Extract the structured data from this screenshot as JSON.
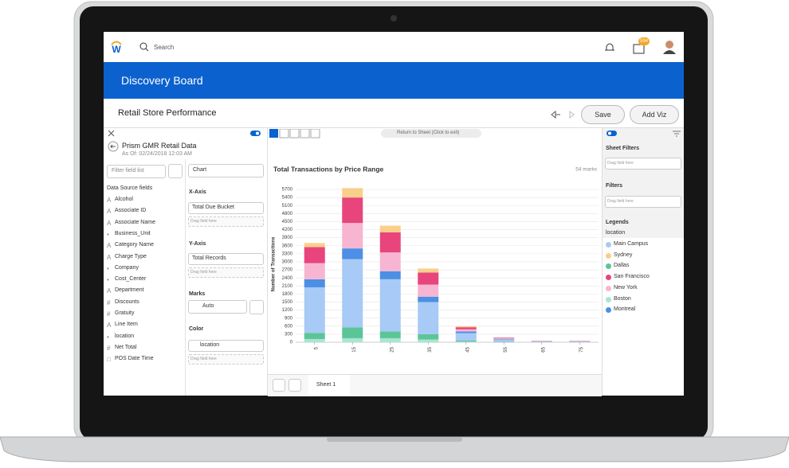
{
  "header": {
    "search": "Search",
    "notification_count": 594
  },
  "banner": {
    "title": "Discovery Board"
  },
  "board": {
    "title": "Retail Store Performance",
    "buttons": [
      "Save",
      "Add Viz"
    ]
  },
  "toolbar": {
    "return_button": "Return to Sheet (Click to exit)"
  },
  "dataset": {
    "name": "Prism GMR Retail Data",
    "as_of": "As Of: 02/24/2018 12:03 AM",
    "filter_placeholder": "Filter field list",
    "section": "Data Source fields",
    "fields": [
      "Alcohol",
      "Associate ID",
      "Associate Name",
      "Business_Unit",
      "Category Name",
      "Charge Type",
      "Company",
      "Cost_Center",
      "Department",
      "Discounts",
      "Gratuity",
      "Line Item",
      "location",
      "Net Total",
      "POS Date Time"
    ]
  },
  "config": {
    "chart_kind": "Chart",
    "x_axis": {
      "label": "X-Axis",
      "field": "Total Due Bucket",
      "drop": "Drag field here"
    },
    "y_axis": {
      "label": "Y-Axis",
      "field": "Total Records",
      "drop": "Drag field here"
    },
    "marks": {
      "label": "Marks",
      "value": "Auto"
    },
    "color": {
      "label": "Color",
      "field": "location",
      "drop": "Drag field here"
    }
  },
  "right_panel": {
    "sheet_filters": "Sheet Filters",
    "sheet_filters_drop": "Drag field here",
    "filters": "Filters",
    "filters_drop": "Drag field here",
    "legends": "Legends",
    "legend_title": "location"
  },
  "sheets": [
    "Sheet 1"
  ],
  "chart_data": {
    "type": "bar",
    "stacked": true,
    "title": "Total Transactions by Price Range",
    "marks_count": "54 marks",
    "ylabel": "Number of Transactions",
    "categories": [
      "5",
      "15",
      "25",
      "35",
      "45",
      "55",
      "65",
      "75"
    ],
    "ylim": [
      0,
      5900
    ],
    "yticks": [
      0,
      300,
      600,
      900,
      1200,
      1500,
      1800,
      2100,
      2400,
      2700,
      3000,
      3300,
      3600,
      3900,
      4200,
      4500,
      4800,
      5100,
      5400,
      5700
    ],
    "grid": true,
    "series": [
      {
        "name": "Main Campus",
        "color": "#a7caf6",
        "values": [
          1700,
          2550,
          1950,
          1200,
          280,
          90,
          25,
          25
        ]
      },
      {
        "name": "Sydney",
        "color": "#f9cf8c",
        "values": [
          150,
          350,
          250,
          150,
          40,
          10,
          5,
          5
        ]
      },
      {
        "name": "Dallas",
        "color": "#5cc597",
        "values": [
          230,
          400,
          250,
          200,
          40,
          10,
          3,
          3
        ]
      },
      {
        "name": "San Francisco",
        "color": "#e8457c",
        "values": [
          600,
          950,
          750,
          450,
          80,
          25,
          10,
          10
        ]
      },
      {
        "name": "New York",
        "color": "#f7b5d2",
        "values": [
          600,
          950,
          700,
          450,
          80,
          25,
          10,
          10
        ]
      },
      {
        "name": "Boston",
        "color": "#a9e5d2",
        "values": [
          120,
          150,
          150,
          100,
          20,
          5,
          2,
          2
        ]
      },
      {
        "name": "Montreal",
        "color": "#4c8fe4",
        "values": [
          300,
          400,
          300,
          200,
          60,
          15,
          5,
          5
        ]
      }
    ],
    "stack_order": [
      "Boston",
      "Dallas",
      "Main Campus",
      "Montreal",
      "New York",
      "San Francisco",
      "Sydney"
    ]
  }
}
